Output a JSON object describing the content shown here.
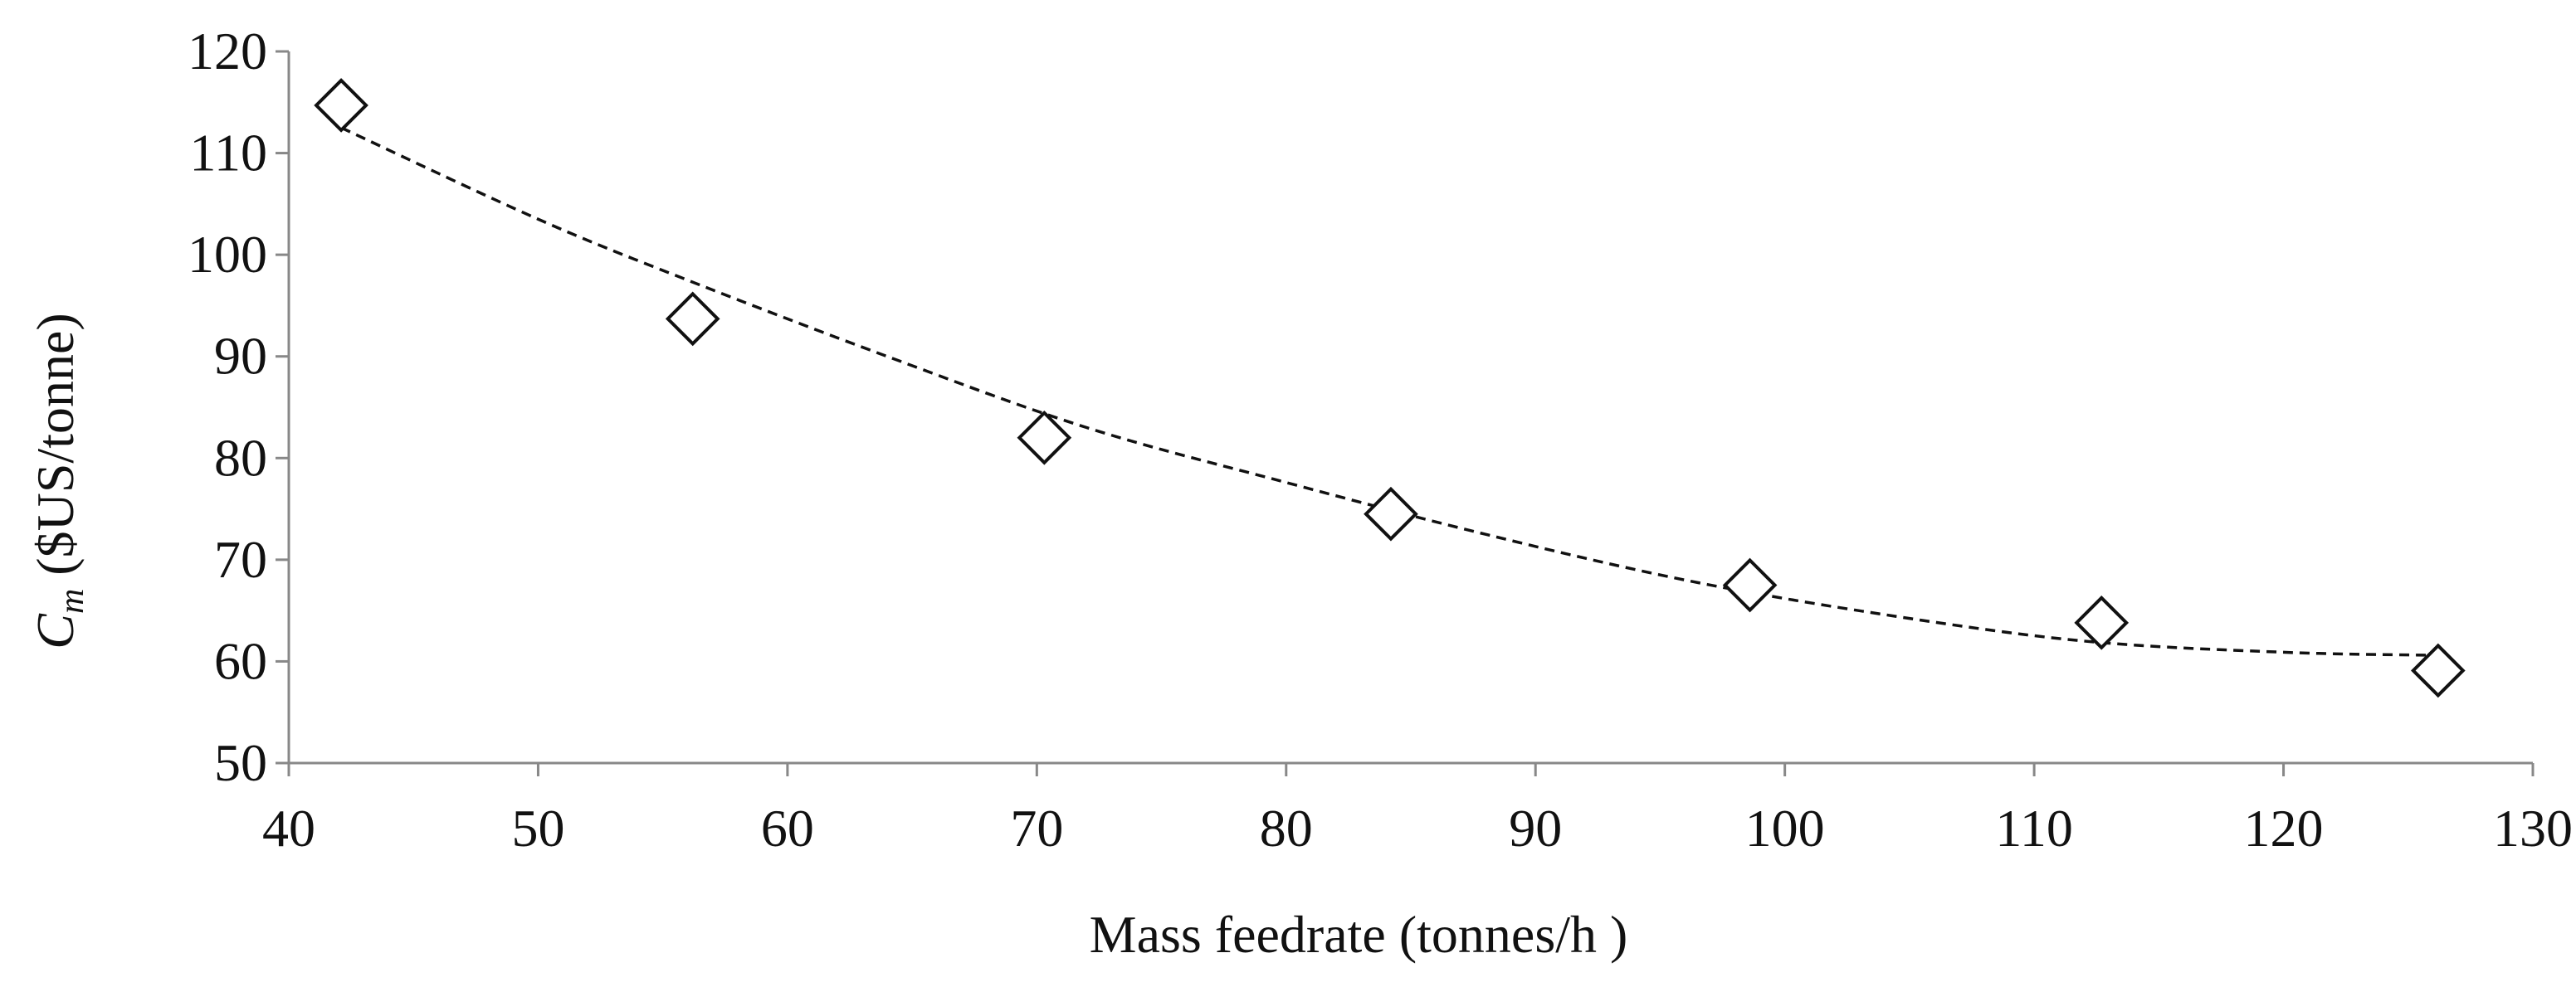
{
  "chart_data": {
    "type": "scatter",
    "title": "",
    "xlabel": "Mass feedrate (tonnes/h )",
    "ylabel_symbol": "C",
    "ylabel_subscript": "m",
    "ylabel_units": " ($US/tonne)",
    "xlim": [
      40,
      130
    ],
    "ylim": [
      50,
      120
    ],
    "xticks": [
      40,
      50,
      60,
      70,
      80,
      90,
      100,
      110,
      120,
      130
    ],
    "yticks": [
      50,
      60,
      70,
      80,
      90,
      100,
      110,
      120
    ],
    "grid": false,
    "marker": "diamond-open",
    "trendline": "dashed-polynomial",
    "series": [
      {
        "name": "Cm",
        "x": [
          42.1,
          56.2,
          70.3,
          84.2,
          98.6,
          112.7,
          126.2
        ],
        "y": [
          114.7,
          93.7,
          82.0,
          74.5,
          67.5,
          63.8,
          59.1
        ]
      }
    ],
    "trend": {
      "x": [
        42.1,
        50,
        56,
        64,
        72,
        80,
        88,
        96,
        104,
        112,
        120,
        126.2
      ],
      "y": [
        112.5,
        103.5,
        97.5,
        90.0,
        83.0,
        77.6,
        72.5,
        68.0,
        64.6,
        62.0,
        60.9,
        60.6
      ]
    }
  }
}
